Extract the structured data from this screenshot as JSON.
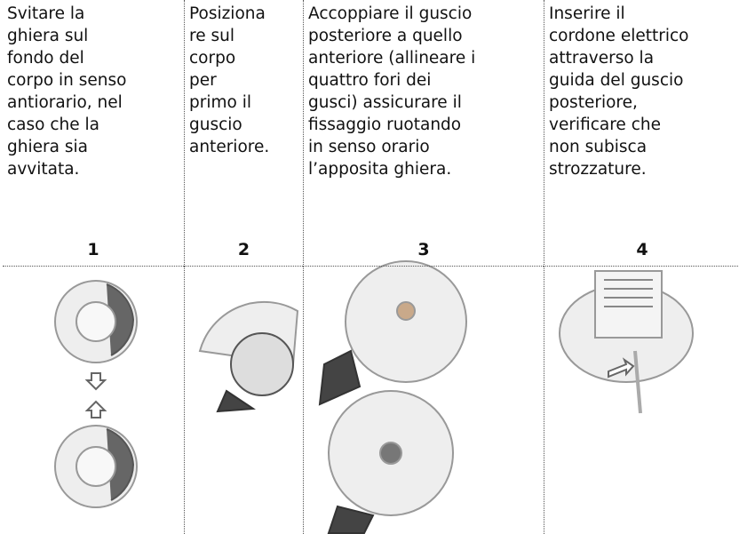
{
  "table": {
    "steps": [
      {
        "lines": [
          "Svitare la",
          "ghiera sul",
          "fondo del",
          "corpo in senso",
          "antiorario, nel",
          "caso che la",
          "ghiera sia",
          "avvitata."
        ],
        "number": "1"
      },
      {
        "lines": [
          "Posiziona",
          "re sul",
          "corpo",
          "per",
          "primo il",
          "guscio",
          "anteriore."
        ],
        "number": "2"
      },
      {
        "lines": [
          "Accoppiare il guscio",
          "posteriore a quello",
          "anteriore (allineare i",
          "quattro fori dei",
          "gusci) assicurare il",
          "fissaggio ruotando",
          "in senso orario",
          "l’apposita ghiera."
        ],
        "number": "3"
      },
      {
        "lines": [
          "Inserire il",
          "cordone elettrico",
          "attraverso la",
          "guida del guscio",
          "posteriore,",
          "verificare che",
          "non subisca",
          "strozzature."
        ],
        "number": "4"
      }
    ]
  }
}
